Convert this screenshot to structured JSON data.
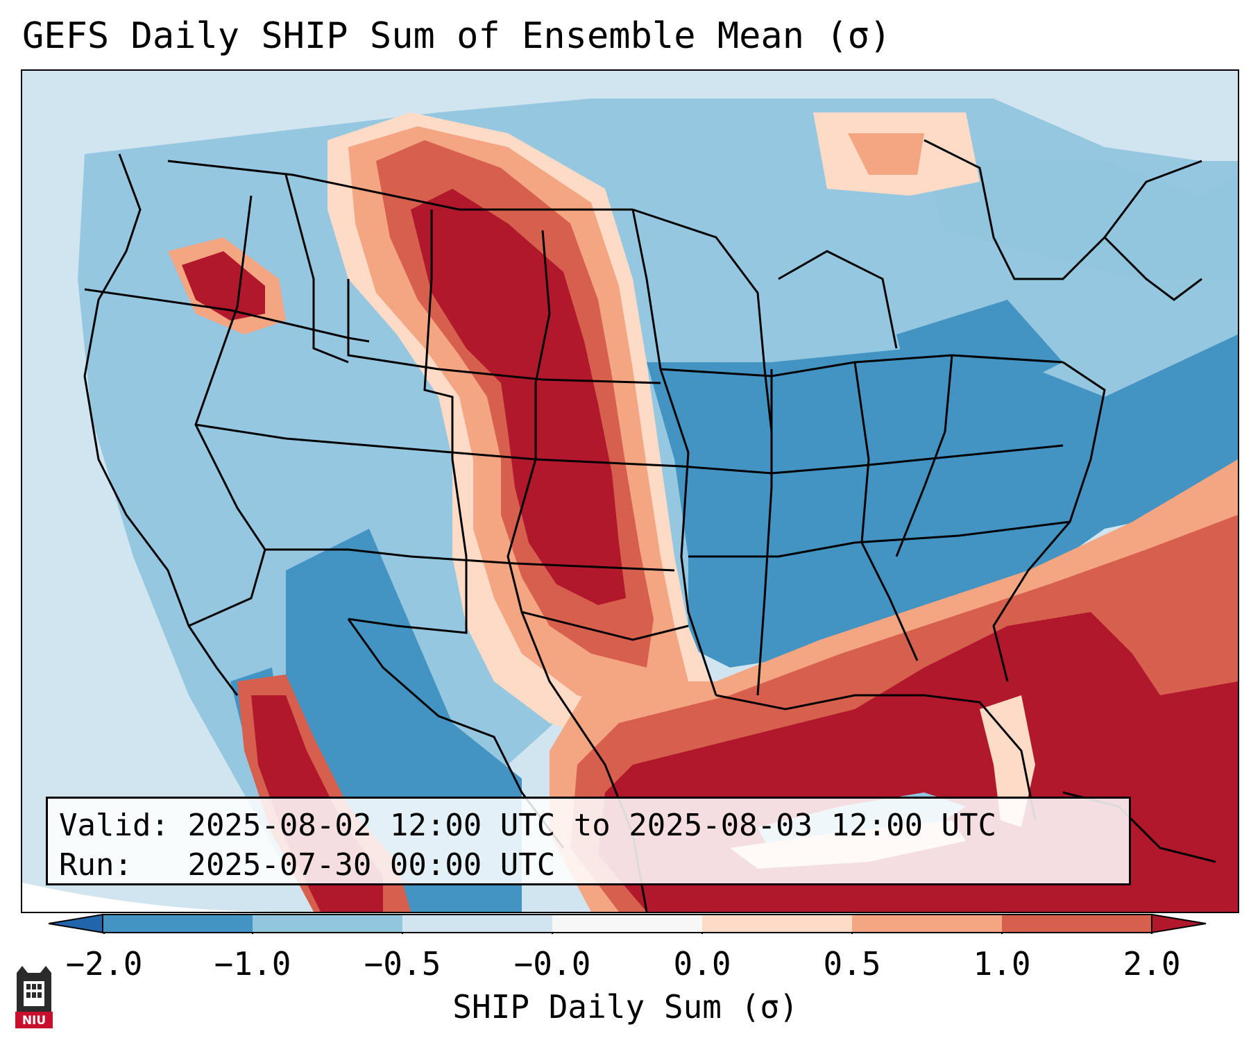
{
  "title": "GEFS Daily SHIP Sum of Ensemble Mean (σ)",
  "info": {
    "valid_label": "Valid:",
    "valid_value": "2025-08-02 12:00 UTC to 2025-08-03 12:00 UTC",
    "run_label": "Run:",
    "run_value": "2025-07-30 00:00 UTC"
  },
  "colorbar": {
    "title": "SHIP Daily Sum (σ)",
    "ticks": [
      "−2.0",
      "−1.0",
      "−0.5",
      "−0.0",
      "0.0",
      "0.5",
      "1.0",
      "2.0"
    ],
    "colors": [
      "#4393c3",
      "#92c5de",
      "#d1e5f0",
      "#f7f7f7",
      "#fddbc7",
      "#f4a582",
      "#d6604d",
      "#b2182b"
    ],
    "under_color": "#2166ac",
    "over_color": "#b2182b"
  },
  "map": {
    "region": "Continental United States",
    "fill_colors": {
      "ocean_light": "#d1e5f0",
      "neg_light": "#92c5de",
      "neg_mid": "#4393c3",
      "pos_light": "#fddbc7",
      "pos_mid": "#f4a582",
      "pos_strong": "#d6604d",
      "pos_max": "#b2182b"
    }
  },
  "logo": {
    "text": "NIU"
  }
}
